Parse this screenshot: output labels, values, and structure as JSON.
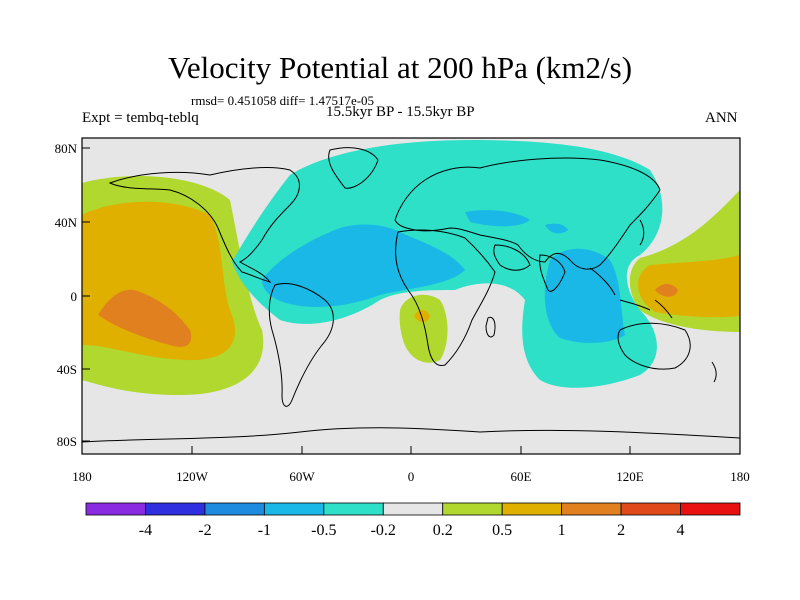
{
  "header": {
    "title": "Velocity Potential at 200 hPa (km2/s)",
    "stats": "rmsd= 0.451058 diff= 1.47517e-05",
    "experiment": "Expt = tembq-teblq",
    "period": "15.5kyr BP - 15.5kyr BP",
    "season": "ANN"
  },
  "axes": {
    "lat_labels": [
      "80N",
      "40N",
      "0",
      "40S",
      "80S"
    ],
    "lon_labels": [
      "180",
      "120W",
      "60W",
      "0",
      "60E",
      "120E",
      "180"
    ]
  },
  "colorbar": {
    "colors": [
      "#8a2be2",
      "#2f2fe0",
      "#1e8ae0",
      "#19b8e6",
      "#2ee0c8",
      "#e6e6e6",
      "#b0d82e",
      "#e0b000",
      "#e0801e",
      "#e04a1a",
      "#e81010"
    ],
    "labels": [
      "-4",
      "-2",
      "-1",
      "-0.5",
      "-0.2",
      "0.2",
      "0.5",
      "1",
      "2",
      "4"
    ]
  },
  "field_levels": {
    "background": "#e6e6e6",
    "neg_light": "#2ee0c8",
    "neg_mid": "#19b8e6",
    "pos_light": "#b0d82e",
    "pos_mid": "#e0b000",
    "pos_strong": "#e0801e"
  }
}
